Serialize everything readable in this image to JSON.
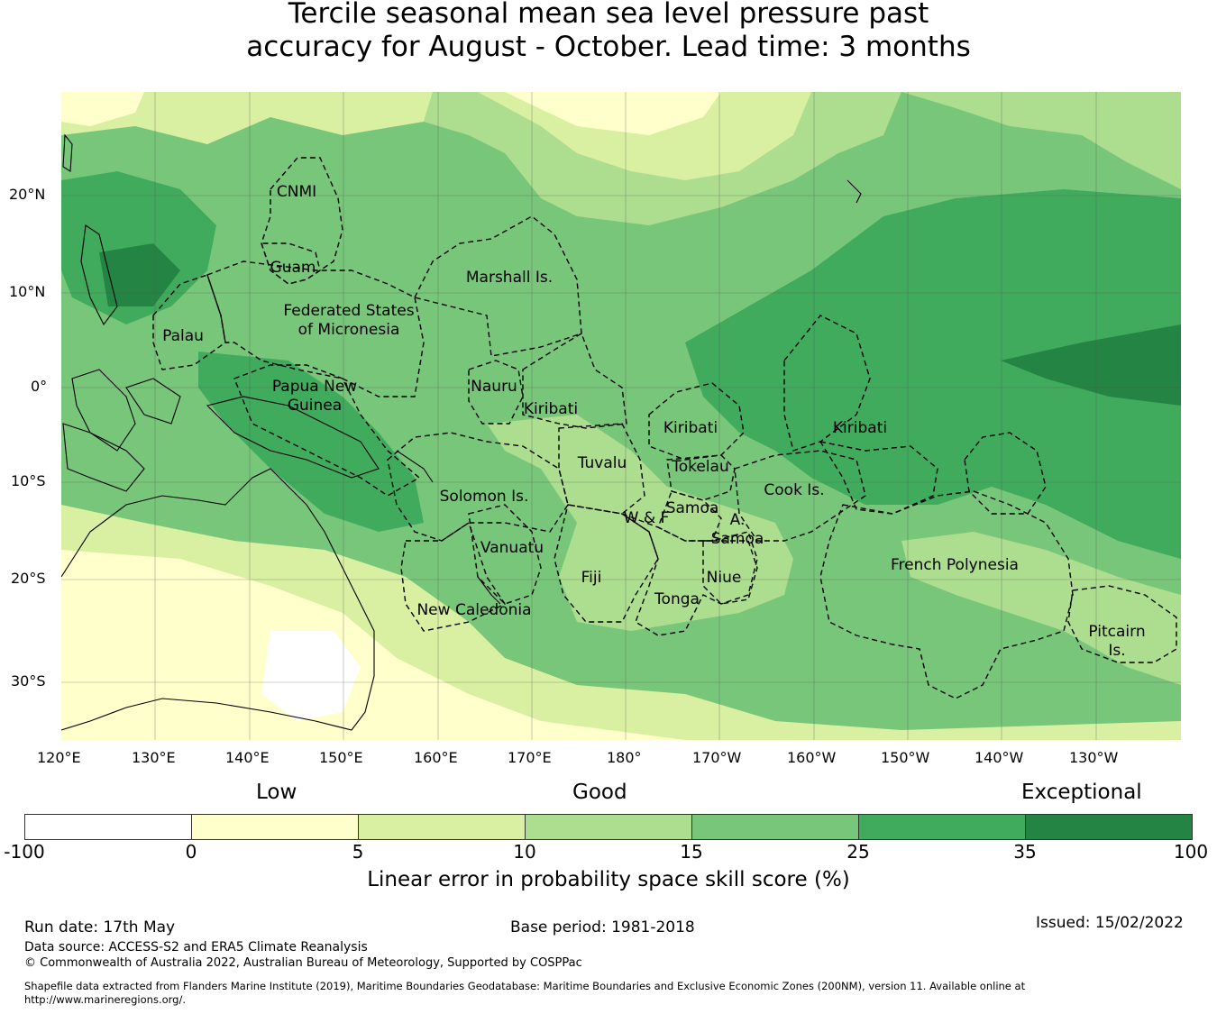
{
  "title": {
    "line1": "Tercile seasonal mean sea level pressure past",
    "line2": "accuracy for August - October. Lead time: 3 months"
  },
  "map": {
    "lat_labels": [
      "20°N",
      "10°N",
      "0°",
      "10°S",
      "20°S",
      "30°S"
    ],
    "lon_labels": [
      "120°E",
      "130°E",
      "140°E",
      "150°E",
      "160°E",
      "170°E",
      "180°",
      "170°W",
      "160°W",
      "150°W",
      "140°W",
      "130°W"
    ],
    "regions": [
      "CNMI",
      "Guam",
      "Marshall Is.",
      "Federated States",
      "of Micronesia",
      "Palau",
      "Papua New",
      "Guinea",
      "Nauru",
      "Kiribati",
      "Kiribati",
      "Kiribati",
      "Tuvalu",
      "Tokelau",
      "Cook Is.",
      "Solomon Is.",
      "Samoa",
      "W & F",
      "A.",
      "Samoa",
      "Vanuatu",
      "Fiji",
      "Niue",
      "Tonga",
      "French Polynesia",
      "New Caledonia",
      "Pitcairn",
      "Is."
    ]
  },
  "legend": {
    "categories": [
      "Low",
      "Good",
      "Exceptional"
    ],
    "ticks": [
      "-100",
      "0",
      "5",
      "10",
      "15",
      "25",
      "35",
      "100"
    ],
    "colors": [
      "#ffffff",
      "#ffffcc",
      "#d9f0a3",
      "#addd8e",
      "#78c679",
      "#41ab5d",
      "#238443"
    ],
    "label": "Linear error in probability space skill score (%)"
  },
  "footer": {
    "run_date": "Run date: 17th May",
    "base_period": "Base period: 1981-2018",
    "issued": "Issued: 15/02/2022",
    "data_source": "Data source: ACCESS-S2 and ERA5 Climate Reanalysis",
    "copyright": "© Commonwealth of Australia 2022, Australian Bureau of Meteorology, Supported by COSPPac",
    "shapefile_line1": "Shapefile data extracted from Flanders Marine Institute (2019), Maritime Boundaries Geodatabase: Maritime Boundaries and Exclusive Economic Zones (200NM), version 11. Available online at",
    "shapefile_line2": "http://www.marineregions.org/."
  }
}
